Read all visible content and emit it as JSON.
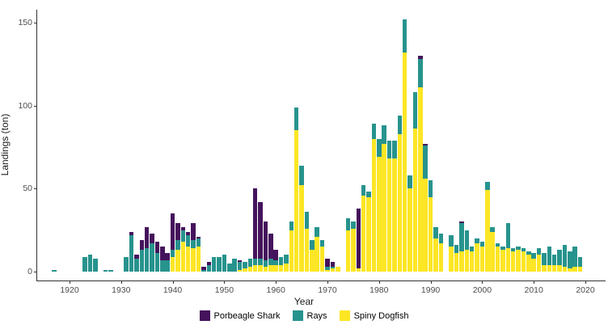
{
  "figure": {
    "y_axis_label": "Landings (ton)",
    "x_axis_label": "Year"
  },
  "legend": {
    "items": [
      {
        "label": "Porbeagle Shark",
        "color": "#45135c"
      },
      {
        "label": "Rays",
        "color": "#27938d"
      },
      {
        "label": "Spiny Dogfish",
        "color": "#fde625"
      }
    ]
  },
  "chart_data": {
    "type": "bar",
    "stacked": true,
    "title": "",
    "xlabel": "Year",
    "ylabel": "Landings (ton)",
    "ylim": [
      0,
      155
    ],
    "xlim": [
      1913,
      2023
    ],
    "grid": false,
    "legend_position": "bottom",
    "y_ticks": [
      0,
      50,
      100,
      150
    ],
    "x_ticks": [
      1920,
      1930,
      1940,
      1950,
      1960,
      1970,
      1980,
      1990,
      2000,
      2010,
      2020
    ],
    "series_names": [
      "Porbeagle Shark",
      "Rays",
      "Spiny Dogfish"
    ],
    "series_colors": {
      "Porbeagle Shark": "#45135c",
      "Rays": "#27938d",
      "Spiny Dogfish": "#fde625"
    },
    "stack_order_bottom_to_top": [
      "Spiny Dogfish",
      "Rays",
      "Porbeagle Shark"
    ],
    "points_format": "year: [porbeagle, rays, dogfish] in tons",
    "points": [
      {
        "year": 1917,
        "values": [
          0,
          1,
          0
        ]
      },
      {
        "year": 1923,
        "values": [
          0,
          9,
          0
        ]
      },
      {
        "year": 1924,
        "values": [
          0,
          10,
          0
        ]
      },
      {
        "year": 1925,
        "values": [
          0,
          8,
          0
        ]
      },
      {
        "year": 1927,
        "values": [
          0,
          1,
          0
        ]
      },
      {
        "year": 1928,
        "values": [
          0,
          1,
          0
        ]
      },
      {
        "year": 1931,
        "values": [
          0,
          9,
          0
        ]
      },
      {
        "year": 1932,
        "values": [
          2,
          22,
          0
        ]
      },
      {
        "year": 1933,
        "values": [
          2,
          8,
          0
        ]
      },
      {
        "year": 1934,
        "values": [
          6,
          13,
          0
        ]
      },
      {
        "year": 1935,
        "values": [
          13,
          14,
          0
        ]
      },
      {
        "year": 1936,
        "values": [
          6,
          17,
          0
        ]
      },
      {
        "year": 1937,
        "values": [
          7,
          11,
          0
        ]
      },
      {
        "year": 1938,
        "values": [
          8,
          7,
          0
        ]
      },
      {
        "year": 1939,
        "values": [
          4,
          7,
          0
        ]
      },
      {
        "year": 1940,
        "values": [
          22,
          4,
          9
        ]
      },
      {
        "year": 1941,
        "values": [
          10,
          6,
          13
        ]
      },
      {
        "year": 1942,
        "values": [
          2,
          7,
          18
        ]
      },
      {
        "year": 1943,
        "values": [
          2,
          7,
          15
        ]
      },
      {
        "year": 1944,
        "values": [
          10,
          5,
          14
        ]
      },
      {
        "year": 1945,
        "values": [
          1,
          5,
          15
        ]
      },
      {
        "year": 1946,
        "values": [
          2,
          1,
          0
        ]
      },
      {
        "year": 1947,
        "values": [
          2,
          4,
          0
        ]
      },
      {
        "year": 1948,
        "values": [
          0,
          9,
          0
        ]
      },
      {
        "year": 1949,
        "values": [
          0,
          9,
          0
        ]
      },
      {
        "year": 1950,
        "values": [
          0,
          10,
          0
        ]
      },
      {
        "year": 1951,
        "values": [
          0,
          5,
          0
        ]
      },
      {
        "year": 1952,
        "values": [
          0,
          8,
          0
        ]
      },
      {
        "year": 1953,
        "values": [
          1,
          5,
          1
        ]
      },
      {
        "year": 1954,
        "values": [
          0,
          4,
          2
        ]
      },
      {
        "year": 1955,
        "values": [
          0,
          5,
          3
        ]
      },
      {
        "year": 1956,
        "values": [
          42,
          4,
          4
        ]
      },
      {
        "year": 1957,
        "values": [
          34,
          4,
          4
        ]
      },
      {
        "year": 1958,
        "values": [
          23,
          4,
          3
        ]
      },
      {
        "year": 1959,
        "values": [
          15,
          4,
          4
        ]
      },
      {
        "year": 1960,
        "values": [
          6,
          3,
          4
        ]
      },
      {
        "year": 1961,
        "values": [
          0,
          5,
          4
        ]
      },
      {
        "year": 1962,
        "values": [
          0,
          5,
          5
        ]
      },
      {
        "year": 1963,
        "values": [
          0,
          5,
          25
        ]
      },
      {
        "year": 1964,
        "values": [
          0,
          14,
          85
        ]
      },
      {
        "year": 1965,
        "values": [
          0,
          12,
          52
        ]
      },
      {
        "year": 1966,
        "values": [
          0,
          10,
          26
        ]
      },
      {
        "year": 1967,
        "values": [
          0,
          6,
          13
        ]
      },
      {
        "year": 1968,
        "values": [
          0,
          6,
          21
        ]
      },
      {
        "year": 1969,
        "values": [
          0,
          4,
          15
        ]
      },
      {
        "year": 1970,
        "values": [
          5,
          2,
          1
        ]
      },
      {
        "year": 1971,
        "values": [
          3,
          1,
          2
        ]
      },
      {
        "year": 1972,
        "values": [
          0,
          0,
          3
        ]
      },
      {
        "year": 1974,
        "values": [
          0,
          7,
          25
        ]
      },
      {
        "year": 1975,
        "values": [
          0,
          4,
          26
        ]
      },
      {
        "year": 1976,
        "values": [
          36,
          0,
          2
        ]
      },
      {
        "year": 1977,
        "values": [
          0,
          6,
          46
        ]
      },
      {
        "year": 1978,
        "values": [
          0,
          3,
          45
        ]
      },
      {
        "year": 1979,
        "values": [
          0,
          9,
          80
        ]
      },
      {
        "year": 1980,
        "values": [
          0,
          11,
          69
        ]
      },
      {
        "year": 1981,
        "values": [
          0,
          11,
          77
        ]
      },
      {
        "year": 1982,
        "values": [
          0,
          11,
          68
        ]
      },
      {
        "year": 1983,
        "values": [
          0,
          11,
          68
        ]
      },
      {
        "year": 1984,
        "values": [
          0,
          11,
          83
        ]
      },
      {
        "year": 1985,
        "values": [
          0,
          20,
          132
        ]
      },
      {
        "year": 1986,
        "values": [
          0,
          8,
          50
        ]
      },
      {
        "year": 1987,
        "values": [
          0,
          22,
          86
        ]
      },
      {
        "year": 1988,
        "values": [
          2,
          17,
          111
        ]
      },
      {
        "year": 1989,
        "values": [
          1,
          20,
          56
        ]
      },
      {
        "year": 1990,
        "values": [
          0,
          10,
          45
        ]
      },
      {
        "year": 1991,
        "values": [
          0,
          7,
          20
        ]
      },
      {
        "year": 1992,
        "values": [
          0,
          6,
          17
        ]
      },
      {
        "year": 1994,
        "values": [
          0,
          7,
          15
        ]
      },
      {
        "year": 1995,
        "values": [
          0,
          5,
          11
        ]
      },
      {
        "year": 1996,
        "values": [
          1,
          17,
          12
        ]
      },
      {
        "year": 1997,
        "values": [
          0,
          12,
          13
        ]
      },
      {
        "year": 1998,
        "values": [
          0,
          3,
          12
        ]
      },
      {
        "year": 1999,
        "values": [
          0,
          3,
          17
        ]
      },
      {
        "year": 2000,
        "values": [
          0,
          3,
          15
        ]
      },
      {
        "year": 2001,
        "values": [
          0,
          5,
          49
        ]
      },
      {
        "year": 2002,
        "values": [
          0,
          3,
          24
        ]
      },
      {
        "year": 2003,
        "values": [
          0,
          2,
          15
        ]
      },
      {
        "year": 2004,
        "values": [
          0,
          2,
          13
        ]
      },
      {
        "year": 2005,
        "values": [
          0,
          15,
          14
        ]
      },
      {
        "year": 2006,
        "values": [
          0,
          2,
          12
        ]
      },
      {
        "year": 2007,
        "values": [
          0,
          2,
          13
        ]
      },
      {
        "year": 2008,
        "values": [
          0,
          2,
          12
        ]
      },
      {
        "year": 2009,
        "values": [
          0,
          2,
          10
        ]
      },
      {
        "year": 2010,
        "values": [
          0,
          3,
          8
        ]
      },
      {
        "year": 2011,
        "values": [
          0,
          4,
          10
        ]
      },
      {
        "year": 2012,
        "values": [
          0,
          7,
          4
        ]
      },
      {
        "year": 2013,
        "values": [
          0,
          11,
          4
        ]
      },
      {
        "year": 2014,
        "values": [
          0,
          6,
          4
        ]
      },
      {
        "year": 2015,
        "values": [
          0,
          9,
          4
        ]
      },
      {
        "year": 2016,
        "values": [
          0,
          13,
          3
        ]
      },
      {
        "year": 2017,
        "values": [
          0,
          10,
          2
        ]
      },
      {
        "year": 2018,
        "values": [
          0,
          12,
          3
        ]
      },
      {
        "year": 2019,
        "values": [
          0,
          6,
          3
        ]
      }
    ]
  }
}
